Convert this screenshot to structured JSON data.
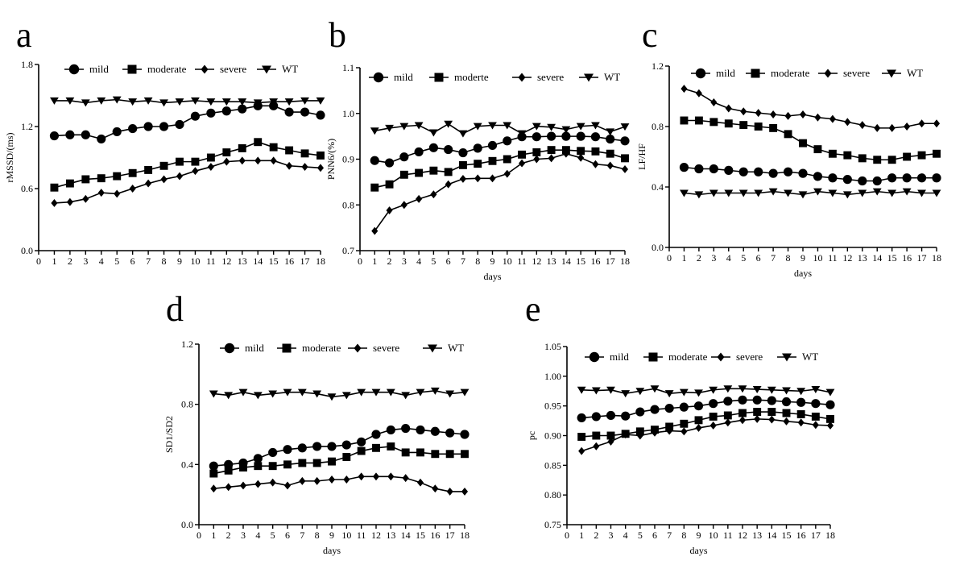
{
  "chart_data": [
    {
      "type": "line",
      "panel_label": "a",
      "ylabel": "rMSSD/(ms)",
      "xlabel": "",
      "xlim": [
        0,
        18
      ],
      "ylim": [
        0.0,
        1.8
      ],
      "yticks": [
        0.0,
        0.6,
        1.2,
        1.8
      ],
      "ytick_labels": [
        "0.0",
        "0.6",
        "1.2",
        "1.8"
      ],
      "x": [
        1,
        2,
        3,
        4,
        5,
        6,
        7,
        8,
        9,
        10,
        11,
        12,
        13,
        14,
        15,
        16,
        17,
        18
      ],
      "series": [
        {
          "name": "mild",
          "marker": "circle",
          "values": [
            1.11,
            1.12,
            1.12,
            1.08,
            1.15,
            1.18,
            1.2,
            1.2,
            1.22,
            1.3,
            1.33,
            1.35,
            1.37,
            1.4,
            1.4,
            1.34,
            1.34,
            1.31
          ]
        },
        {
          "name": "moderate",
          "marker": "square",
          "values": [
            0.61,
            0.65,
            0.69,
            0.7,
            0.72,
            0.75,
            0.78,
            0.82,
            0.86,
            0.86,
            0.9,
            0.95,
            0.99,
            1.05,
            1.0,
            0.97,
            0.94,
            0.92
          ]
        },
        {
          "name": "severe",
          "marker": "diamond",
          "values": [
            0.46,
            0.47,
            0.5,
            0.56,
            0.55,
            0.6,
            0.65,
            0.69,
            0.72,
            0.77,
            0.81,
            0.86,
            0.87,
            0.87,
            0.87,
            0.82,
            0.81,
            0.8
          ]
        },
        {
          "name": "WT",
          "marker": "triangle-down",
          "values": [
            1.45,
            1.45,
            1.43,
            1.45,
            1.46,
            1.44,
            1.45,
            1.43,
            1.44,
            1.45,
            1.44,
            1.44,
            1.44,
            1.43,
            1.44,
            1.44,
            1.45,
            1.45
          ]
        }
      ]
    },
    {
      "type": "line",
      "panel_label": "b",
      "ylabel": "PNN6/(%)",
      "xlabel": "days",
      "xlim": [
        0,
        18
      ],
      "ylim": [
        0.7,
        1.1
      ],
      "yticks": [
        0.7,
        0.8,
        0.9,
        1.0,
        1.1
      ],
      "ytick_labels": [
        "0.7",
        "0.8",
        "0.9",
        "1.0",
        "1.1"
      ],
      "x": [
        1,
        2,
        3,
        4,
        5,
        6,
        7,
        8,
        9,
        10,
        11,
        12,
        13,
        14,
        15,
        16,
        17,
        18
      ],
      "series": [
        {
          "name": "mild",
          "marker": "circle",
          "values": [
            0.897,
            0.892,
            0.905,
            0.916,
            0.925,
            0.921,
            0.914,
            0.924,
            0.93,
            0.94,
            0.949,
            0.949,
            0.95,
            0.95,
            0.95,
            0.949,
            0.944,
            0.94
          ]
        },
        {
          "name": "moderte",
          "marker": "square",
          "values": [
            0.838,
            0.845,
            0.866,
            0.87,
            0.875,
            0.872,
            0.887,
            0.89,
            0.896,
            0.9,
            0.91,
            0.915,
            0.92,
            0.92,
            0.918,
            0.917,
            0.912,
            0.902
          ]
        },
        {
          "name": "severe",
          "marker": "diamond",
          "values": [
            0.743,
            0.788,
            0.8,
            0.813,
            0.823,
            0.845,
            0.857,
            0.858,
            0.858,
            0.868,
            0.891,
            0.9,
            0.902,
            0.912,
            0.903,
            0.889,
            0.886,
            0.878
          ]
        },
        {
          "name": "WT",
          "marker": "triangle-down",
          "values": [
            0.962,
            0.968,
            0.972,
            0.974,
            0.958,
            0.977,
            0.956,
            0.972,
            0.974,
            0.974,
            0.956,
            0.972,
            0.97,
            0.965,
            0.972,
            0.974,
            0.96,
            0.971
          ]
        }
      ]
    },
    {
      "type": "line",
      "panel_label": "c",
      "ylabel": "LF/HF",
      "xlabel": "days",
      "xlim": [
        0,
        18
      ],
      "ylim": [
        0.0,
        1.2
      ],
      "yticks": [
        0.0,
        0.4,
        0.8,
        1.2
      ],
      "ytick_labels": [
        "0.0",
        "0.4",
        "0.8",
        "1.2"
      ],
      "x": [
        1,
        2,
        3,
        4,
        5,
        6,
        7,
        8,
        9,
        10,
        11,
        12,
        13,
        14,
        15,
        16,
        17,
        18
      ],
      "series": [
        {
          "name": "mild",
          "marker": "circle",
          "values": [
            0.53,
            0.52,
            0.52,
            0.51,
            0.5,
            0.5,
            0.49,
            0.5,
            0.49,
            0.47,
            0.46,
            0.45,
            0.44,
            0.44,
            0.46,
            0.46,
            0.46,
            0.46
          ]
        },
        {
          "name": "moderate",
          "marker": "square",
          "values": [
            0.84,
            0.84,
            0.83,
            0.82,
            0.81,
            0.8,
            0.79,
            0.75,
            0.69,
            0.65,
            0.62,
            0.61,
            0.59,
            0.58,
            0.58,
            0.6,
            0.61,
            0.62
          ]
        },
        {
          "name": "severe",
          "marker": "diamond",
          "values": [
            1.05,
            1.02,
            0.96,
            0.92,
            0.9,
            0.89,
            0.88,
            0.87,
            0.88,
            0.86,
            0.85,
            0.83,
            0.81,
            0.79,
            0.79,
            0.8,
            0.82,
            0.82
          ]
        },
        {
          "name": "WT",
          "marker": "triangle-down",
          "values": [
            0.36,
            0.35,
            0.36,
            0.36,
            0.36,
            0.36,
            0.37,
            0.36,
            0.35,
            0.37,
            0.36,
            0.35,
            0.36,
            0.37,
            0.36,
            0.37,
            0.36,
            0.36
          ]
        }
      ]
    },
    {
      "type": "line",
      "panel_label": "d",
      "ylabel": "SD1/SD2",
      "xlabel": "days",
      "xlim": [
        0,
        18
      ],
      "ylim": [
        0.0,
        1.2
      ],
      "yticks": [
        0.0,
        0.4,
        0.8,
        1.2
      ],
      "ytick_labels": [
        "0.0",
        "0.4",
        "0.8",
        "1.2"
      ],
      "x": [
        1,
        2,
        3,
        4,
        5,
        6,
        7,
        8,
        9,
        10,
        11,
        12,
        13,
        14,
        15,
        16,
        17,
        18
      ],
      "series": [
        {
          "name": "mild",
          "marker": "circle",
          "values": [
            0.39,
            0.4,
            0.41,
            0.44,
            0.48,
            0.5,
            0.51,
            0.52,
            0.52,
            0.53,
            0.55,
            0.6,
            0.63,
            0.64,
            0.63,
            0.62,
            0.61,
            0.6
          ]
        },
        {
          "name": "moderate",
          "marker": "square",
          "values": [
            0.34,
            0.36,
            0.38,
            0.39,
            0.39,
            0.4,
            0.41,
            0.41,
            0.42,
            0.45,
            0.49,
            0.51,
            0.52,
            0.48,
            0.48,
            0.47,
            0.47,
            0.47
          ]
        },
        {
          "name": "severe",
          "marker": "diamond",
          "values": [
            0.24,
            0.25,
            0.26,
            0.27,
            0.28,
            0.26,
            0.29,
            0.29,
            0.3,
            0.3,
            0.32,
            0.32,
            0.32,
            0.31,
            0.28,
            0.24,
            0.22,
            0.22
          ]
        },
        {
          "name": "WT",
          "marker": "triangle-down",
          "values": [
            0.87,
            0.86,
            0.88,
            0.86,
            0.87,
            0.88,
            0.88,
            0.87,
            0.85,
            0.86,
            0.88,
            0.88,
            0.88,
            0.86,
            0.88,
            0.89,
            0.87,
            0.88
          ]
        }
      ]
    },
    {
      "type": "line",
      "panel_label": "e",
      "ylabel": "pc",
      "xlabel": "days",
      "xlim": [
        0,
        18
      ],
      "ylim": [
        0.75,
        1.05
      ],
      "yticks": [
        0.75,
        0.8,
        0.85,
        0.9,
        0.95,
        1.0,
        1.05
      ],
      "ytick_labels": [
        "0.75",
        "0.80",
        "0.85",
        "0.90",
        "0.95",
        "1.00",
        "1.05"
      ],
      "x": [
        1,
        2,
        3,
        4,
        5,
        6,
        7,
        8,
        9,
        10,
        11,
        12,
        13,
        14,
        15,
        16,
        17,
        18
      ],
      "series": [
        {
          "name": "mild",
          "marker": "circle",
          "values": [
            0.93,
            0.932,
            0.934,
            0.933,
            0.94,
            0.944,
            0.946,
            0.948,
            0.95,
            0.954,
            0.958,
            0.96,
            0.96,
            0.959,
            0.957,
            0.956,
            0.954,
            0.952
          ]
        },
        {
          "name": "moderate",
          "marker": "square",
          "values": [
            0.898,
            0.9,
            0.9,
            0.903,
            0.907,
            0.91,
            0.915,
            0.92,
            0.926,
            0.932,
            0.934,
            0.938,
            0.94,
            0.94,
            0.938,
            0.936,
            0.932,
            0.928
          ]
        },
        {
          "name": "severe",
          "marker": "diamond",
          "values": [
            0.874,
            0.882,
            0.89,
            0.902,
            0.9,
            0.905,
            0.908,
            0.907,
            0.913,
            0.917,
            0.922,
            0.926,
            0.928,
            0.927,
            0.924,
            0.922,
            0.918,
            0.917
          ]
        },
        {
          "name": "WT",
          "marker": "triangle-down",
          "values": [
            0.977,
            0.976,
            0.977,
            0.971,
            0.975,
            0.979,
            0.971,
            0.973,
            0.972,
            0.977,
            0.979,
            0.979,
            0.978,
            0.977,
            0.976,
            0.975,
            0.978,
            0.973
          ]
        }
      ]
    }
  ]
}
